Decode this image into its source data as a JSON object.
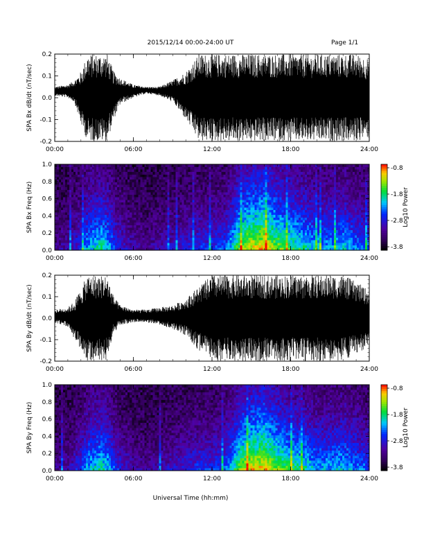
{
  "header": {
    "title": "2015/12/14  00:00-24:00 UT",
    "page": "Page 1/1"
  },
  "footer": {
    "xlabel": "Universal Time (hh:mm)"
  },
  "time_ticks": [
    "00:00",
    "06:00",
    "12:00",
    "18:00",
    "24:00"
  ],
  "colorbar": {
    "label": "Log10 Power",
    "ticks": [
      "-0.8",
      "-1.8",
      "-2.8",
      "-3.8"
    ]
  },
  "chart_data": [
    {
      "type": "line",
      "ylabel": "SPA Bx dB/dt (nT/sec)",
      "xlim": [
        0,
        24
      ],
      "ylim": [
        -0.2,
        0.2
      ],
      "yticks": [
        "0.2",
        "0.1",
        "0.0",
        "-0.1",
        "-0.2"
      ],
      "envelope": {
        "x": [
          0,
          1,
          1.5,
          2,
          2.5,
          3,
          3.5,
          4,
          4.5,
          5,
          6,
          7,
          8,
          9,
          10,
          10.5,
          11,
          12,
          13,
          14,
          15,
          16,
          17,
          18,
          19,
          20,
          21,
          22,
          23,
          24
        ],
        "max": [
          0.05,
          0.06,
          0.08,
          0.12,
          0.2,
          0.2,
          0.2,
          0.2,
          0.12,
          0.09,
          0.06,
          0.05,
          0.05,
          0.08,
          0.12,
          0.16,
          0.2,
          0.2,
          0.2,
          0.2,
          0.2,
          0.2,
          0.2,
          0.2,
          0.2,
          0.2,
          0.2,
          0.2,
          0.2,
          0.18
        ],
        "min": [
          0.01,
          0.0,
          -0.02,
          -0.12,
          -0.2,
          -0.2,
          -0.2,
          -0.2,
          -0.1,
          -0.03,
          0.0,
          0.02,
          0.01,
          -0.02,
          -0.1,
          -0.15,
          -0.2,
          -0.2,
          -0.2,
          -0.2,
          -0.2,
          -0.2,
          -0.2,
          -0.2,
          -0.2,
          -0.2,
          -0.2,
          -0.2,
          -0.2,
          -0.18
        ]
      }
    },
    {
      "type": "heatmap",
      "ylabel": "SPA Bx Freq (Hz)",
      "xlim": [
        0,
        24
      ],
      "ylim": [
        0,
        1.0
      ],
      "yticks": [
        "1.0",
        "0.8",
        "0.6",
        "0.4",
        "0.2",
        "0.0"
      ],
      "zlim": [
        -3.8,
        -0.8
      ],
      "activity": {
        "x": [
          0,
          1,
          2,
          2.5,
          3,
          3.5,
          4,
          4.5,
          5,
          6,
          7,
          8,
          9,
          10,
          11,
          12,
          13,
          13.5,
          14,
          14.5,
          15,
          15.5,
          16,
          16.5,
          17,
          18,
          19,
          20,
          21,
          22,
          23,
          24
        ],
        "level": [
          0.15,
          0.2,
          0.35,
          0.5,
          0.55,
          0.6,
          0.55,
          0.4,
          0.3,
          0.2,
          0.15,
          0.2,
          0.25,
          0.3,
          0.35,
          0.35,
          0.4,
          0.55,
          0.7,
          0.8,
          0.85,
          0.85,
          0.9,
          0.8,
          0.75,
          0.65,
          0.6,
          0.5,
          0.5,
          0.55,
          0.45,
          0.4
        ]
      }
    },
    {
      "type": "line",
      "ylabel": "SPA By dB/dt (nT/sec)",
      "xlim": [
        0,
        24
      ],
      "ylim": [
        -0.2,
        0.2
      ],
      "yticks": [
        "0.2",
        "0.1",
        "0.0",
        "-0.1",
        "-0.2"
      ],
      "envelope": {
        "x": [
          0,
          1,
          1.5,
          2,
          2.5,
          3,
          3.5,
          4,
          4.5,
          5,
          6,
          7,
          8,
          9,
          10,
          10.5,
          11,
          12,
          13,
          14,
          15,
          16,
          17,
          18,
          19,
          20,
          21,
          22,
          23,
          24
        ],
        "max": [
          0.04,
          0.05,
          0.08,
          0.14,
          0.2,
          0.2,
          0.2,
          0.2,
          0.1,
          0.06,
          0.04,
          0.04,
          0.05,
          0.06,
          0.09,
          0.12,
          0.15,
          0.2,
          0.2,
          0.2,
          0.2,
          0.2,
          0.2,
          0.2,
          0.2,
          0.2,
          0.2,
          0.2,
          0.17,
          0.13
        ],
        "min": [
          -0.02,
          -0.04,
          -0.1,
          -0.15,
          -0.2,
          -0.2,
          -0.2,
          -0.2,
          -0.07,
          -0.03,
          -0.02,
          -0.02,
          -0.03,
          -0.05,
          -0.08,
          -0.12,
          -0.15,
          -0.2,
          -0.2,
          -0.2,
          -0.2,
          -0.2,
          -0.2,
          -0.2,
          -0.2,
          -0.2,
          -0.2,
          -0.2,
          -0.17,
          -0.13
        ]
      }
    },
    {
      "type": "heatmap",
      "ylabel": "SPA By Freq (Hz)",
      "xlim": [
        0,
        24
      ],
      "ylim": [
        0,
        1.0
      ],
      "yticks": [
        "1.0",
        "0.8",
        "0.6",
        "0.4",
        "0.2",
        "0.0"
      ],
      "zlim": [
        -3.8,
        -0.8
      ],
      "activity": {
        "x": [
          0,
          1,
          2,
          2.5,
          3,
          3.5,
          4,
          4.5,
          5,
          6,
          7,
          8,
          9,
          10,
          11,
          12,
          13,
          13.5,
          14,
          14.5,
          15,
          15.5,
          16,
          16.5,
          17,
          18,
          19,
          20,
          21,
          22,
          23,
          24
        ],
        "level": [
          0.15,
          0.2,
          0.35,
          0.5,
          0.55,
          0.6,
          0.55,
          0.4,
          0.3,
          0.2,
          0.15,
          0.2,
          0.25,
          0.3,
          0.35,
          0.35,
          0.4,
          0.55,
          0.7,
          0.8,
          0.85,
          0.85,
          0.9,
          0.8,
          0.75,
          0.65,
          0.6,
          0.5,
          0.5,
          0.55,
          0.45,
          0.4
        ]
      }
    }
  ]
}
